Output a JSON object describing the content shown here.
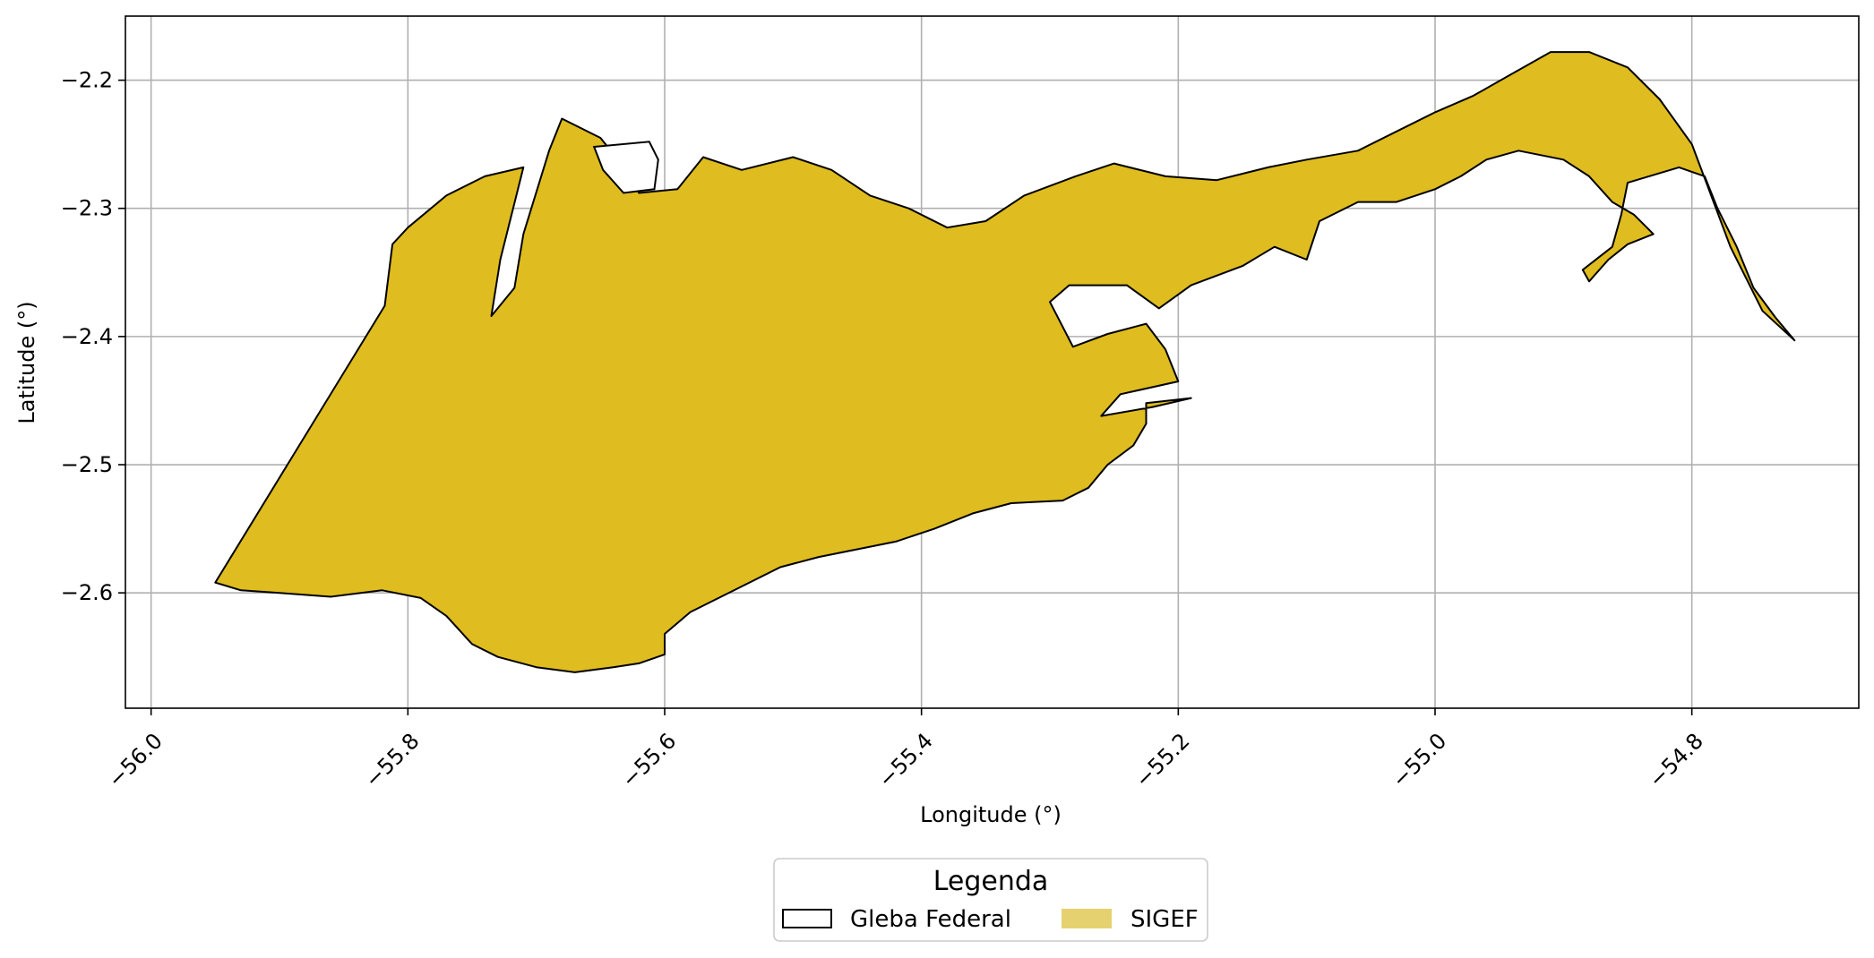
{
  "chart_data": {
    "type": "map",
    "xlabel": "Longitude (°)",
    "ylabel": "Latitude (°)",
    "xlim": [
      -56.02,
      -54.67
    ],
    "ylim": [
      -2.69,
      -2.15
    ],
    "xticks": [
      -56.0,
      -55.8,
      -55.6,
      -55.4,
      -55.2,
      -55.0,
      -54.8
    ],
    "xtick_labels": [
      "−56.0",
      "−55.8",
      "−55.6",
      "−55.4",
      "−55.2",
      "−55.0",
      "−54.8"
    ],
    "yticks": [
      -2.2,
      -2.3,
      -2.4,
      -2.5,
      -2.6
    ],
    "ytick_labels": [
      "−2.2",
      "−2.3",
      "−2.4",
      "−2.5",
      "−2.6"
    ],
    "grid": true,
    "legend": {
      "title": "Legenda",
      "placement": "bottom-center",
      "entries": [
        {
          "label": "Gleba Federal",
          "style": "outline",
          "fill": "#ffffff",
          "edge": "#000000"
        },
        {
          "label": "SIGEF",
          "style": "fill",
          "fill": "#e6d170",
          "edge": "#e6d170"
        }
      ]
    },
    "fill_color": "#dfbc1f",
    "edge_color": "#000000",
    "polygons": [
      {
        "name": "main",
        "coords": [
          [
            -55.95,
            -2.592
          ],
          [
            -55.93,
            -2.598
          ],
          [
            -55.9,
            -2.6
          ],
          [
            -55.86,
            -2.603
          ],
          [
            -55.82,
            -2.598
          ],
          [
            -55.79,
            -2.604
          ],
          [
            -55.77,
            -2.618
          ],
          [
            -55.75,
            -2.64
          ],
          [
            -55.73,
            -2.65
          ],
          [
            -55.7,
            -2.658
          ],
          [
            -55.67,
            -2.662
          ],
          [
            -55.64,
            -2.658
          ],
          [
            -55.62,
            -2.655
          ],
          [
            -55.6,
            -2.648
          ],
          [
            -55.6,
            -2.632
          ],
          [
            -55.58,
            -2.615
          ],
          [
            -55.54,
            -2.595
          ],
          [
            -55.51,
            -2.58
          ],
          [
            -55.48,
            -2.572
          ],
          [
            -55.45,
            -2.566
          ],
          [
            -55.42,
            -2.56
          ],
          [
            -55.39,
            -2.55
          ],
          [
            -55.36,
            -2.538
          ],
          [
            -55.33,
            -2.53
          ],
          [
            -55.29,
            -2.528
          ],
          [
            -55.27,
            -2.518
          ],
          [
            -55.255,
            -2.5
          ],
          [
            -55.235,
            -2.485
          ],
          [
            -55.225,
            -2.468
          ],
          [
            -55.225,
            -2.452
          ],
          [
            -55.19,
            -2.448
          ],
          [
            -55.22,
            -2.455
          ],
          [
            -55.26,
            -2.462
          ],
          [
            -55.245,
            -2.445
          ],
          [
            -55.2,
            -2.435
          ],
          [
            -55.21,
            -2.41
          ],
          [
            -55.225,
            -2.39
          ],
          [
            -55.255,
            -2.398
          ],
          [
            -55.282,
            -2.408
          ],
          [
            -55.3,
            -2.373
          ],
          [
            -55.285,
            -2.36
          ],
          [
            -55.24,
            -2.36
          ],
          [
            -55.215,
            -2.378
          ],
          [
            -55.19,
            -2.36
          ],
          [
            -55.15,
            -2.345
          ],
          [
            -55.125,
            -2.33
          ],
          [
            -55.1,
            -2.34
          ],
          [
            -55.09,
            -2.31
          ],
          [
            -55.06,
            -2.295
          ],
          [
            -55.03,
            -2.295
          ],
          [
            -55.0,
            -2.285
          ],
          [
            -54.98,
            -2.275
          ],
          [
            -54.96,
            -2.262
          ],
          [
            -54.935,
            -2.255
          ],
          [
            -54.9,
            -2.262
          ],
          [
            -54.88,
            -2.275
          ],
          [
            -54.862,
            -2.295
          ],
          [
            -54.845,
            -2.305
          ],
          [
            -54.83,
            -2.32
          ],
          [
            -54.85,
            -2.328
          ],
          [
            -54.865,
            -2.34
          ],
          [
            -54.88,
            -2.357
          ],
          [
            -54.885,
            -2.348
          ],
          [
            -54.862,
            -2.33
          ],
          [
            -54.855,
            -2.305
          ],
          [
            -54.85,
            -2.28
          ],
          [
            -54.81,
            -2.268
          ],
          [
            -54.79,
            -2.275
          ],
          [
            -54.78,
            -2.3
          ],
          [
            -54.765,
            -2.33
          ],
          [
            -54.752,
            -2.362
          ],
          [
            -54.735,
            -2.385
          ],
          [
            -54.72,
            -2.403
          ],
          [
            -54.745,
            -2.38
          ],
          [
            -54.77,
            -2.33
          ],
          [
            -54.785,
            -2.29
          ],
          [
            -54.8,
            -2.25
          ],
          [
            -54.825,
            -2.215
          ],
          [
            -54.85,
            -2.19
          ],
          [
            -54.88,
            -2.178
          ],
          [
            -54.91,
            -2.178
          ],
          [
            -54.94,
            -2.195
          ],
          [
            -54.97,
            -2.212
          ],
          [
            -55.0,
            -2.225
          ],
          [
            -55.03,
            -2.24
          ],
          [
            -55.06,
            -2.255
          ],
          [
            -55.1,
            -2.262
          ],
          [
            -55.13,
            -2.268
          ],
          [
            -55.17,
            -2.278
          ],
          [
            -55.21,
            -2.275
          ],
          [
            -55.25,
            -2.265
          ],
          [
            -55.28,
            -2.275
          ],
          [
            -55.32,
            -2.29
          ],
          [
            -55.35,
            -2.31
          ],
          [
            -55.38,
            -2.315
          ],
          [
            -55.41,
            -2.3
          ],
          [
            -55.44,
            -2.29
          ],
          [
            -55.47,
            -2.27
          ],
          [
            -55.5,
            -2.26
          ],
          [
            -55.54,
            -2.27
          ],
          [
            -55.57,
            -2.26
          ],
          [
            -55.59,
            -2.285
          ],
          [
            -55.62,
            -2.288
          ],
          [
            -55.63,
            -2.27
          ],
          [
            -55.65,
            -2.245
          ],
          [
            -55.68,
            -2.23
          ],
          [
            -55.69,
            -2.255
          ],
          [
            -55.71,
            -2.32
          ],
          [
            -55.717,
            -2.362
          ],
          [
            -55.735,
            -2.384
          ],
          [
            -55.728,
            -2.34
          ],
          [
            -55.71,
            -2.268
          ],
          [
            -55.74,
            -2.275
          ],
          [
            -55.77,
            -2.29
          ],
          [
            -55.8,
            -2.315
          ],
          [
            -55.812,
            -2.328
          ],
          [
            -55.818,
            -2.376
          ]
        ]
      }
    ]
  }
}
